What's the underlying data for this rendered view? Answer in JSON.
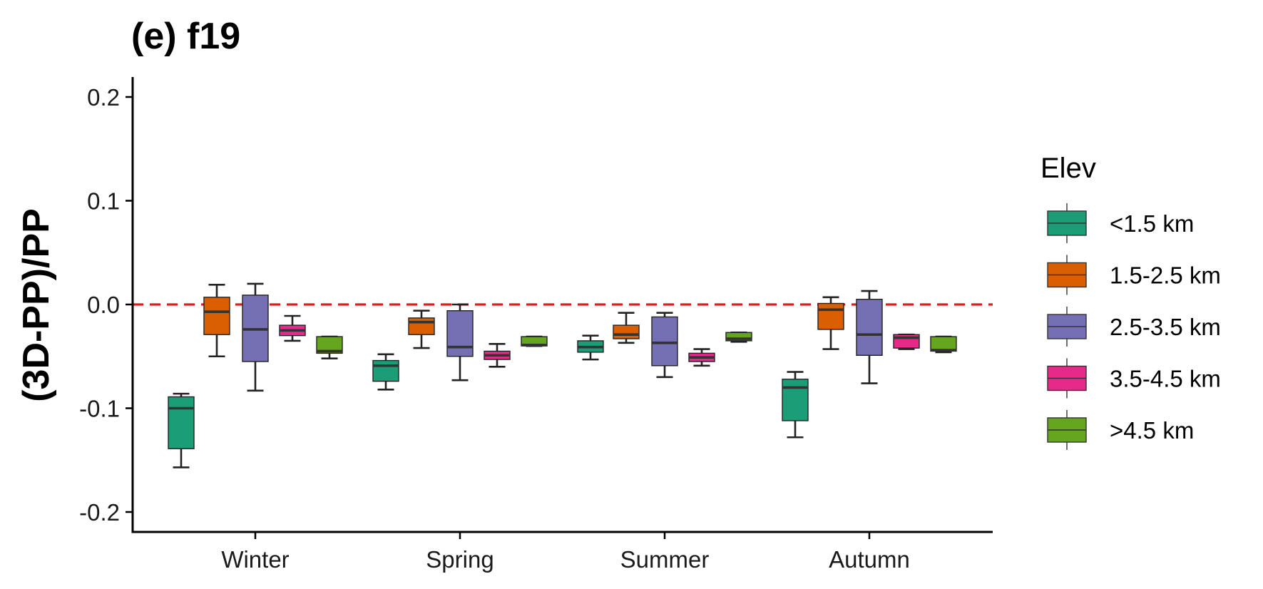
{
  "chart_data": {
    "type": "box",
    "title": "(e) f19",
    "xlabel": "",
    "ylabel": "(3D-PP)/PP",
    "ylim": [
      -0.22,
      0.22
    ],
    "yticks": [
      0.2,
      0.1,
      0.0,
      -0.1,
      -0.2
    ],
    "ytick_labels": [
      "0.2",
      "0.1",
      "0.0",
      "-0.1",
      "-0.2"
    ],
    "categories": [
      "Winter",
      "Spring",
      "Summer",
      "Autumn"
    ],
    "reference_line": {
      "y": 0.0,
      "color": "#e41a1c",
      "style": "dashed"
    },
    "grid": false,
    "legend": {
      "title": "Elev",
      "placement": "right",
      "entries": [
        "<1.5 km",
        "1.5-2.5 km",
        "2.5-3.5 km",
        "3.5-4.5 km",
        ">4.5 km"
      ]
    },
    "series": [
      {
        "name": "<1.5 km",
        "color": "#1b9e77",
        "boxes": [
          {
            "min": -0.157,
            "q1": -0.139,
            "median": -0.1,
            "q3": -0.089,
            "max": -0.086
          },
          {
            "min": -0.082,
            "q1": -0.074,
            "median": -0.059,
            "q3": -0.054,
            "max": -0.048
          },
          {
            "min": -0.053,
            "q1": -0.046,
            "median": -0.041,
            "q3": -0.035,
            "max": -0.03
          },
          {
            "min": -0.128,
            "q1": -0.112,
            "median": -0.08,
            "q3": -0.072,
            "max": -0.065
          }
        ]
      },
      {
        "name": "1.5-2.5 km",
        "color": "#d95f02",
        "boxes": [
          {
            "min": -0.05,
            "q1": -0.029,
            "median": -0.007,
            "q3": 0.007,
            "max": 0.019
          },
          {
            "min": -0.042,
            "q1": -0.029,
            "median": -0.017,
            "q3": -0.013,
            "max": -0.006
          },
          {
            "min": -0.037,
            "q1": -0.033,
            "median": -0.029,
            "q3": -0.02,
            "max": -0.008
          },
          {
            "min": -0.043,
            "q1": -0.024,
            "median": -0.005,
            "q3": 0.001,
            "max": 0.007
          }
        ]
      },
      {
        "name": "2.5-3.5 km",
        "color": "#7570b3",
        "boxes": [
          {
            "min": -0.083,
            "q1": -0.055,
            "median": -0.024,
            "q3": 0.009,
            "max": 0.02
          },
          {
            "min": -0.073,
            "q1": -0.05,
            "median": -0.041,
            "q3": -0.006,
            "max": 0.0
          },
          {
            "min": -0.07,
            "q1": -0.059,
            "median": -0.037,
            "q3": -0.012,
            "max": -0.008
          },
          {
            "min": -0.076,
            "q1": -0.049,
            "median": -0.029,
            "q3": 0.005,
            "max": 0.013
          }
        ]
      },
      {
        "name": "3.5-4.5 km",
        "color": "#e7298a",
        "boxes": [
          {
            "min": -0.035,
            "q1": -0.03,
            "median": -0.025,
            "q3": -0.02,
            "max": -0.011
          },
          {
            "min": -0.06,
            "q1": -0.053,
            "median": -0.049,
            "q3": -0.045,
            "max": -0.038
          },
          {
            "min": -0.059,
            "q1": -0.055,
            "median": -0.051,
            "q3": -0.047,
            "max": -0.043
          },
          {
            "min": -0.043,
            "q1": -0.042,
            "median": -0.032,
            "q3": -0.029,
            "max": -0.029
          }
        ]
      },
      {
        "name": ">4.5 km",
        "color": "#66a61e",
        "boxes": [
          {
            "min": -0.052,
            "q1": -0.047,
            "median": -0.045,
            "q3": -0.031,
            "max": -0.031
          },
          {
            "min": -0.04,
            "q1": -0.04,
            "median": -0.039,
            "q3": -0.031,
            "max": -0.031
          },
          {
            "min": -0.036,
            "q1": -0.035,
            "median": -0.033,
            "q3": -0.027,
            "max": -0.027
          },
          {
            "min": -0.046,
            "q1": -0.045,
            "median": -0.044,
            "q3": -0.031,
            "max": -0.031
          }
        ]
      }
    ]
  }
}
